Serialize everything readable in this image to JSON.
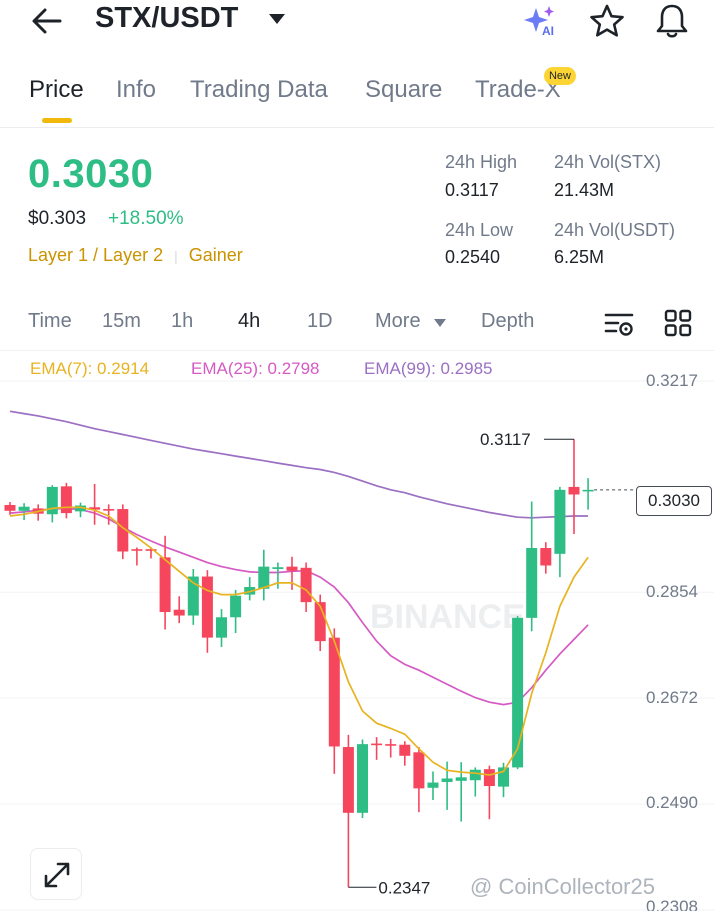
{
  "header": {
    "back_icon": "arrow-left-icon",
    "pair": "STX/USDT",
    "dropdown_icon": "caret-down-icon",
    "ai_icon": "sparkle-ai-icon",
    "ai_badge": "AI",
    "star_icon": "star-icon",
    "bell_icon": "bell-icon"
  },
  "tabs": [
    {
      "label": "Price",
      "active": true
    },
    {
      "label": "Info"
    },
    {
      "label": "Trading Data"
    },
    {
      "label": "Square"
    },
    {
      "label": "Trade-X",
      "badge": "New"
    }
  ],
  "ticker": {
    "last_price": "0.3030",
    "usd_price": "$0.303",
    "change": "+18.50%",
    "tags": [
      "Layer 1 / Layer 2",
      "Gainer"
    ],
    "high_label": "24h High",
    "high": "0.3117",
    "low_label": "24h Low",
    "low": "0.2540",
    "vol_base_label": "24h Vol(STX)",
    "vol_base": "21.43M",
    "vol_quote_label": "24h Vol(USDT)",
    "vol_quote": "6.25M"
  },
  "intervals": {
    "items": [
      "Time",
      "15m",
      "1h",
      "4h",
      "1D",
      "More",
      "Depth"
    ],
    "active": "4h",
    "settings_icon": "indicator-settings-icon",
    "grid_icon": "grid-layout-icon"
  },
  "indicators": {
    "ema7": "EMA(7): 0.2914",
    "ema25": "EMA(25): 0.2798",
    "ema99": "EMA(99): 0.2985"
  },
  "colors": {
    "up": "#2ebd85",
    "down": "#f6465d",
    "accent": "#f0b90b",
    "ema7": "#e8b320",
    "ema25": "#d65ac4",
    "ema99": "#9b6fc2"
  },
  "chart": {
    "y_ticks": [
      "0.3217",
      "0.2854",
      "0.2672",
      "0.2490",
      "0.2308"
    ],
    "current_price": "0.3030",
    "high_marker": "0.3117",
    "low_marker": "0.2347",
    "watermark": "BINANCE"
  },
  "footer": {
    "expand_icon": "expand-arrows-icon",
    "credit": "@ CoinCollector25"
  },
  "chart_data": {
    "type": "candlestick",
    "ylim": [
      0.2308,
      0.3217
    ],
    "y_ticks": [
      0.3217,
      0.2854,
      0.2672,
      0.249,
      0.2308
    ],
    "candles": [
      {
        "o": 0.3004,
        "c": 0.2994,
        "h": 0.3009,
        "l": 0.2987
      },
      {
        "o": 0.2994,
        "c": 0.3001,
        "h": 0.3007,
        "l": 0.2978
      },
      {
        "o": 0.2998,
        "c": 0.2989,
        "h": 0.3005,
        "l": 0.2977
      },
      {
        "o": 0.2988,
        "c": 0.3035,
        "h": 0.3038,
        "l": 0.2974
      },
      {
        "o": 0.3036,
        "c": 0.299,
        "h": 0.3042,
        "l": 0.2981
      },
      {
        "o": 0.2993,
        "c": 0.3003,
        "h": 0.3008,
        "l": 0.2983
      },
      {
        "o": 0.3,
        "c": 0.2996,
        "h": 0.304,
        "l": 0.297
      },
      {
        "o": 0.2997,
        "c": 0.2996,
        "h": 0.3005,
        "l": 0.297
      },
      {
        "o": 0.2997,
        "c": 0.2924,
        "h": 0.3005,
        "l": 0.2911
      },
      {
        "o": 0.2928,
        "c": 0.2926,
        "h": 0.2931,
        "l": 0.29
      },
      {
        "o": 0.2928,
        "c": 0.2926,
        "h": 0.2931,
        "l": 0.2912
      },
      {
        "o": 0.2914,
        "c": 0.282,
        "h": 0.2951,
        "l": 0.279
      },
      {
        "o": 0.2824,
        "c": 0.2814,
        "h": 0.2847,
        "l": 0.2801
      },
      {
        "o": 0.2814,
        "c": 0.2881,
        "h": 0.2894,
        "l": 0.2798
      },
      {
        "o": 0.2881,
        "c": 0.2776,
        "h": 0.2892,
        "l": 0.275
      },
      {
        "o": 0.2776,
        "c": 0.2811,
        "h": 0.2825,
        "l": 0.276
      },
      {
        "o": 0.2811,
        "c": 0.2848,
        "h": 0.2858,
        "l": 0.2784
      },
      {
        "o": 0.285,
        "c": 0.2863,
        "h": 0.288,
        "l": 0.284
      },
      {
        "o": 0.286,
        "c": 0.2898,
        "h": 0.2927,
        "l": 0.284
      },
      {
        "o": 0.2894,
        "c": 0.2897,
        "h": 0.2905,
        "l": 0.286
      },
      {
        "o": 0.2898,
        "c": 0.2891,
        "h": 0.2915,
        "l": 0.2858
      },
      {
        "o": 0.2896,
        "c": 0.2837,
        "h": 0.2905,
        "l": 0.282
      },
      {
        "o": 0.2837,
        "c": 0.277,
        "h": 0.285,
        "l": 0.2753
      },
      {
        "o": 0.2776,
        "c": 0.2589,
        "h": 0.2792,
        "l": 0.2542
      },
      {
        "o": 0.2588,
        "c": 0.2475,
        "h": 0.2609,
        "l": 0.2347
      },
      {
        "o": 0.2475,
        "c": 0.2593,
        "h": 0.2601,
        "l": 0.2466
      },
      {
        "o": 0.2594,
        "c": 0.2592,
        "h": 0.2605,
        "l": 0.2566
      },
      {
        "o": 0.2593,
        "c": 0.2592,
        "h": 0.2602,
        "l": 0.257
      },
      {
        "o": 0.2592,
        "c": 0.2573,
        "h": 0.2598,
        "l": 0.2556
      },
      {
        "o": 0.2579,
        "c": 0.2517,
        "h": 0.2588,
        "l": 0.2476
      },
      {
        "o": 0.2518,
        "c": 0.2527,
        "h": 0.2546,
        "l": 0.2497
      },
      {
        "o": 0.2528,
        "c": 0.2534,
        "h": 0.2563,
        "l": 0.248
      },
      {
        "o": 0.253,
        "c": 0.2536,
        "h": 0.2562,
        "l": 0.246
      },
      {
        "o": 0.2531,
        "c": 0.2549,
        "h": 0.2553,
        "l": 0.2503
      },
      {
        "o": 0.255,
        "c": 0.2521,
        "h": 0.2556,
        "l": 0.2464
      },
      {
        "o": 0.252,
        "c": 0.2553,
        "h": 0.2561,
        "l": 0.2502
      },
      {
        "o": 0.2553,
        "c": 0.281,
        "h": 0.2813,
        "l": 0.255
      },
      {
        "o": 0.281,
        "c": 0.293,
        "h": 0.301,
        "l": 0.2787
      },
      {
        "o": 0.293,
        "c": 0.29,
        "h": 0.294,
        "l": 0.2886
      },
      {
        "o": 0.292,
        "c": 0.303,
        "h": 0.3035,
        "l": 0.288
      },
      {
        "o": 0.3035,
        "c": 0.3022,
        "h": 0.3117,
        "l": 0.2954
      },
      {
        "o": 0.303,
        "c": 0.303,
        "h": 0.305,
        "l": 0.2996
      }
    ],
    "ema7": [
      0.2985,
      0.2988,
      0.2993,
      0.2998,
      0.3,
      0.3,
      0.2995,
      0.2985,
      0.2965,
      0.2948,
      0.293,
      0.291,
      0.289,
      0.287,
      0.2857,
      0.285,
      0.285,
      0.2855,
      0.2862,
      0.287,
      0.287,
      0.2858,
      0.283,
      0.277,
      0.27,
      0.265,
      0.2629,
      0.262,
      0.261,
      0.2585,
      0.2562,
      0.2548,
      0.2545,
      0.2543,
      0.254,
      0.2546,
      0.2585,
      0.268,
      0.275,
      0.283,
      0.288,
      0.2914
    ],
    "ema25": [
      0.299,
      0.2992,
      0.2995,
      0.2997,
      0.2998,
      0.2996,
      0.299,
      0.298,
      0.2966,
      0.2953,
      0.2942,
      0.2932,
      0.2923,
      0.2914,
      0.2905,
      0.2898,
      0.2893,
      0.2889,
      0.2888,
      0.2888,
      0.289,
      0.2891,
      0.288,
      0.2863,
      0.2836,
      0.2802,
      0.277,
      0.2745,
      0.273,
      0.272,
      0.2708,
      0.2696,
      0.2684,
      0.2673,
      0.2665,
      0.2661,
      0.2665,
      0.269,
      0.272,
      0.2748,
      0.2773,
      0.2798
    ],
    "ema99": [
      0.3165,
      0.3161,
      0.3157,
      0.3152,
      0.3147,
      0.3141,
      0.3135,
      0.313,
      0.3125,
      0.312,
      0.3115,
      0.311,
      0.3105,
      0.31,
      0.3096,
      0.3092,
      0.3088,
      0.3084,
      0.308,
      0.3076,
      0.3072,
      0.3068,
      0.3065,
      0.306,
      0.3053,
      0.3045,
      0.3037,
      0.303,
      0.3025,
      0.3018,
      0.3012,
      0.3006,
      0.3001,
      0.2996,
      0.2991,
      0.2987,
      0.2983,
      0.2982,
      0.2983,
      0.2984,
      0.2985,
      0.2985
    ]
  }
}
